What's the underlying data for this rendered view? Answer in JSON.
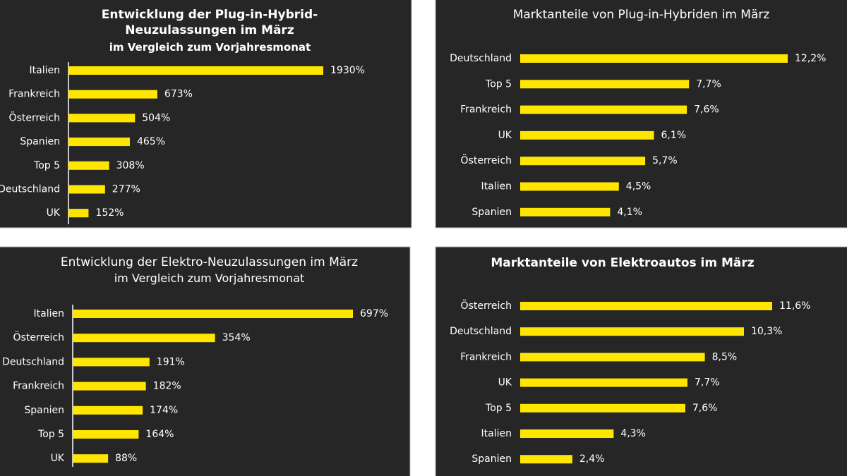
{
  "chart_data": [
    {
      "type": "bar",
      "orientation": "horizontal",
      "title": "Entwicklung der Plug-in-Hybrid-Neuzulassungen im März",
      "subtitle": "im Vergleich zum Vorjahresmonat",
      "categories": [
        "Italien",
        "Frankreich",
        "Österreich",
        "Spanien",
        "Top 5",
        "Deutschland",
        "UK"
      ],
      "values": [
        1930,
        673,
        504,
        465,
        308,
        277,
        152
      ],
      "value_labels": [
        "1930%",
        "673%",
        "504%",
        "465%",
        "308%",
        "277%",
        "152%"
      ],
      "color": "#ffe600"
    },
    {
      "type": "bar",
      "orientation": "horizontal",
      "title": "Marktanteile von Plug-in-Hybriden im März",
      "categories": [
        "Deutschland",
        "Top 5",
        "Frankreich",
        "UK",
        "Österreich",
        "Italien",
        "Spanien"
      ],
      "values": [
        12.2,
        7.7,
        7.6,
        6.1,
        5.7,
        4.5,
        4.1
      ],
      "value_labels": [
        "12,2%",
        "7,7%",
        "7,6%",
        "6,1%",
        "5,7%",
        "4,5%",
        "4,1%"
      ],
      "color": "#ffe600"
    },
    {
      "type": "bar",
      "orientation": "horizontal",
      "title": "Entwicklung der Elektro-Neuzulassungen im März",
      "subtitle": "im Vergleich zum Vorjahresmonat",
      "categories": [
        "Italien",
        "Österreich",
        "Deutschland",
        "Frankreich",
        "Spanien",
        "Top 5",
        "UK"
      ],
      "values": [
        697,
        354,
        191,
        182,
        174,
        164,
        88
      ],
      "value_labels": [
        "697%",
        "354%",
        "191%",
        "182%",
        "174%",
        "164%",
        "88%"
      ],
      "color": "#ffe600"
    },
    {
      "type": "bar",
      "orientation": "horizontal",
      "title": "Marktanteile von Elektroautos im März",
      "categories": [
        "Österreich",
        "Deutschland",
        "Frankreich",
        "UK",
        "Top 5",
        "Italien",
        "Spanien"
      ],
      "values": [
        11.6,
        10.3,
        8.5,
        7.7,
        7.6,
        4.3,
        2.4
      ],
      "value_labels": [
        "11,6%",
        "10,3%",
        "8,5%",
        "7,7%",
        "7,6%",
        "4,3%",
        "2,4%"
      ],
      "color": "#ffe600"
    }
  ]
}
